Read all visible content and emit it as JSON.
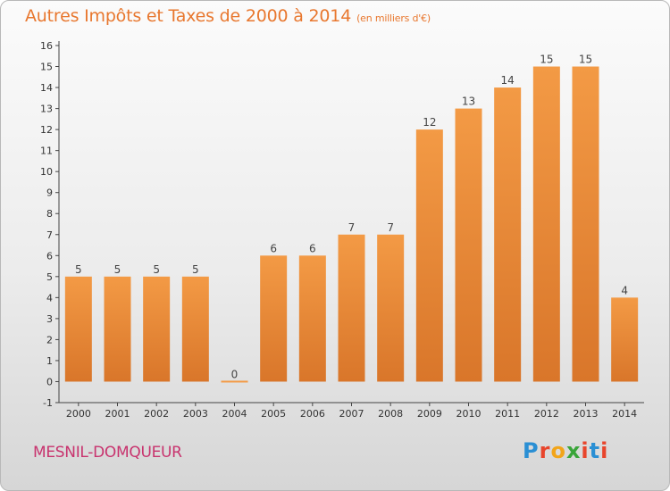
{
  "header": {
    "title": "Autres Impôts et Taxes de 2000 à 2014",
    "subtitle": "(en milliers d'€)"
  },
  "footer": {
    "commune": "MESNIL-DOMQUEUR",
    "logo_letters": [
      "P",
      "r",
      "o",
      "x",
      "i",
      "t",
      "i"
    ],
    "logo_colors": [
      "#2a8fd4",
      "#e8452c",
      "#f2a51a",
      "#3aa53a",
      "#e8452c",
      "#2a8fd4",
      "#e8452c"
    ]
  },
  "chart_data": {
    "type": "bar",
    "categories": [
      "2000",
      "2001",
      "2002",
      "2003",
      "2004",
      "2005",
      "2006",
      "2007",
      "2008",
      "2009",
      "2010",
      "2011",
      "2012",
      "2013",
      "2014"
    ],
    "values": [
      5,
      5,
      5,
      5,
      0,
      6,
      6,
      7,
      7,
      12,
      13,
      14,
      15,
      15,
      4
    ],
    "data_labels": [
      "5",
      "5",
      "5",
      "5",
      "0",
      "6",
      "6",
      "7",
      "7",
      "12",
      "13",
      "14",
      "15",
      "15",
      "4"
    ],
    "title": "Autres Impôts et Taxes de 2000 à 2014",
    "ylim": [
      -1,
      16
    ],
    "yticks": [
      -1,
      0,
      1,
      2,
      3,
      4,
      5,
      6,
      7,
      8,
      9,
      10,
      11,
      12,
      13,
      14,
      15,
      16
    ],
    "grid": false,
    "bar_color": "#f39a45",
    "bar_color_dark": "#d9762a"
  }
}
